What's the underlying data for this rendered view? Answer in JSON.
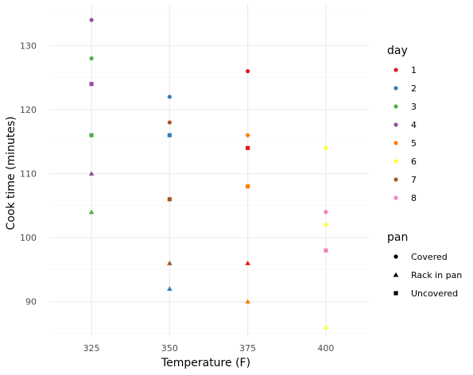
{
  "chart_data": {
    "type": "scatter",
    "xlabel": "Temperature (F)",
    "ylabel": "Cook time (minutes)",
    "x_ticks": [
      "325",
      "350",
      "375",
      "400"
    ],
    "y_ticks": [
      "90",
      "100",
      "110",
      "120",
      "130"
    ],
    "x_lim": [
      311.5,
      413.5
    ],
    "y_lim": [
      84.5,
      136.5
    ],
    "grid": true,
    "legend_position": "right",
    "day_legend": {
      "title": "day",
      "entries": [
        {
          "label": "1",
          "color": "#e41a1c"
        },
        {
          "label": "2",
          "color": "#377eb8"
        },
        {
          "label": "3",
          "color": "#4daf4a"
        },
        {
          "label": "4",
          "color": "#984ea3"
        },
        {
          "label": "5",
          "color": "#ff7f00"
        },
        {
          "label": "6",
          "color": "#ffff33"
        },
        {
          "label": "7",
          "color": "#a65628"
        },
        {
          "label": "8",
          "color": "#f781bf"
        }
      ]
    },
    "pan_legend": {
      "title": "pan",
      "entries": [
        {
          "label": "Covered",
          "shape": "circle"
        },
        {
          "label": "Rack in pan",
          "shape": "triangle"
        },
        {
          "label": "Uncovered",
          "shape": "square"
        }
      ]
    },
    "points": [
      {
        "x": 325,
        "y": 134,
        "day": "4",
        "pan": "Covered"
      },
      {
        "x": 325,
        "y": 128,
        "day": "3",
        "pan": "Covered"
      },
      {
        "x": 325,
        "y": 124,
        "day": "4",
        "pan": "Uncovered"
      },
      {
        "x": 325,
        "y": 116,
        "day": "3",
        "pan": "Uncovered"
      },
      {
        "x": 325,
        "y": 110,
        "day": "4",
        "pan": "Rack in pan"
      },
      {
        "x": 325,
        "y": 104,
        "day": "3",
        "pan": "Rack in pan"
      },
      {
        "x": 350,
        "y": 122,
        "day": "2",
        "pan": "Covered"
      },
      {
        "x": 350,
        "y": 118,
        "day": "7",
        "pan": "Covered"
      },
      {
        "x": 350,
        "y": 116,
        "day": "2",
        "pan": "Uncovered"
      },
      {
        "x": 350,
        "y": 106,
        "day": "7",
        "pan": "Uncovered"
      },
      {
        "x": 350,
        "y": 96,
        "day": "7",
        "pan": "Rack in pan"
      },
      {
        "x": 350,
        "y": 92,
        "day": "2",
        "pan": "Rack in pan"
      },
      {
        "x": 375,
        "y": 126,
        "day": "1",
        "pan": "Covered"
      },
      {
        "x": 375,
        "y": 116,
        "day": "5",
        "pan": "Covered"
      },
      {
        "x": 375,
        "y": 114,
        "day": "1",
        "pan": "Uncovered"
      },
      {
        "x": 375,
        "y": 108,
        "day": "5",
        "pan": "Uncovered"
      },
      {
        "x": 375,
        "y": 96,
        "day": "1",
        "pan": "Rack in pan"
      },
      {
        "x": 375,
        "y": 90,
        "day": "5",
        "pan": "Rack in pan"
      },
      {
        "x": 400,
        "y": 114,
        "day": "6",
        "pan": "Covered"
      },
      {
        "x": 400,
        "y": 104,
        "day": "8",
        "pan": "Covered"
      },
      {
        "x": 400,
        "y": 102,
        "day": "6",
        "pan": "Covered"
      },
      {
        "x": 400,
        "y": 98,
        "day": "8",
        "pan": "Uncovered"
      },
      {
        "x": 400,
        "y": 86,
        "day": "6",
        "pan": "Rack in pan"
      }
    ]
  }
}
